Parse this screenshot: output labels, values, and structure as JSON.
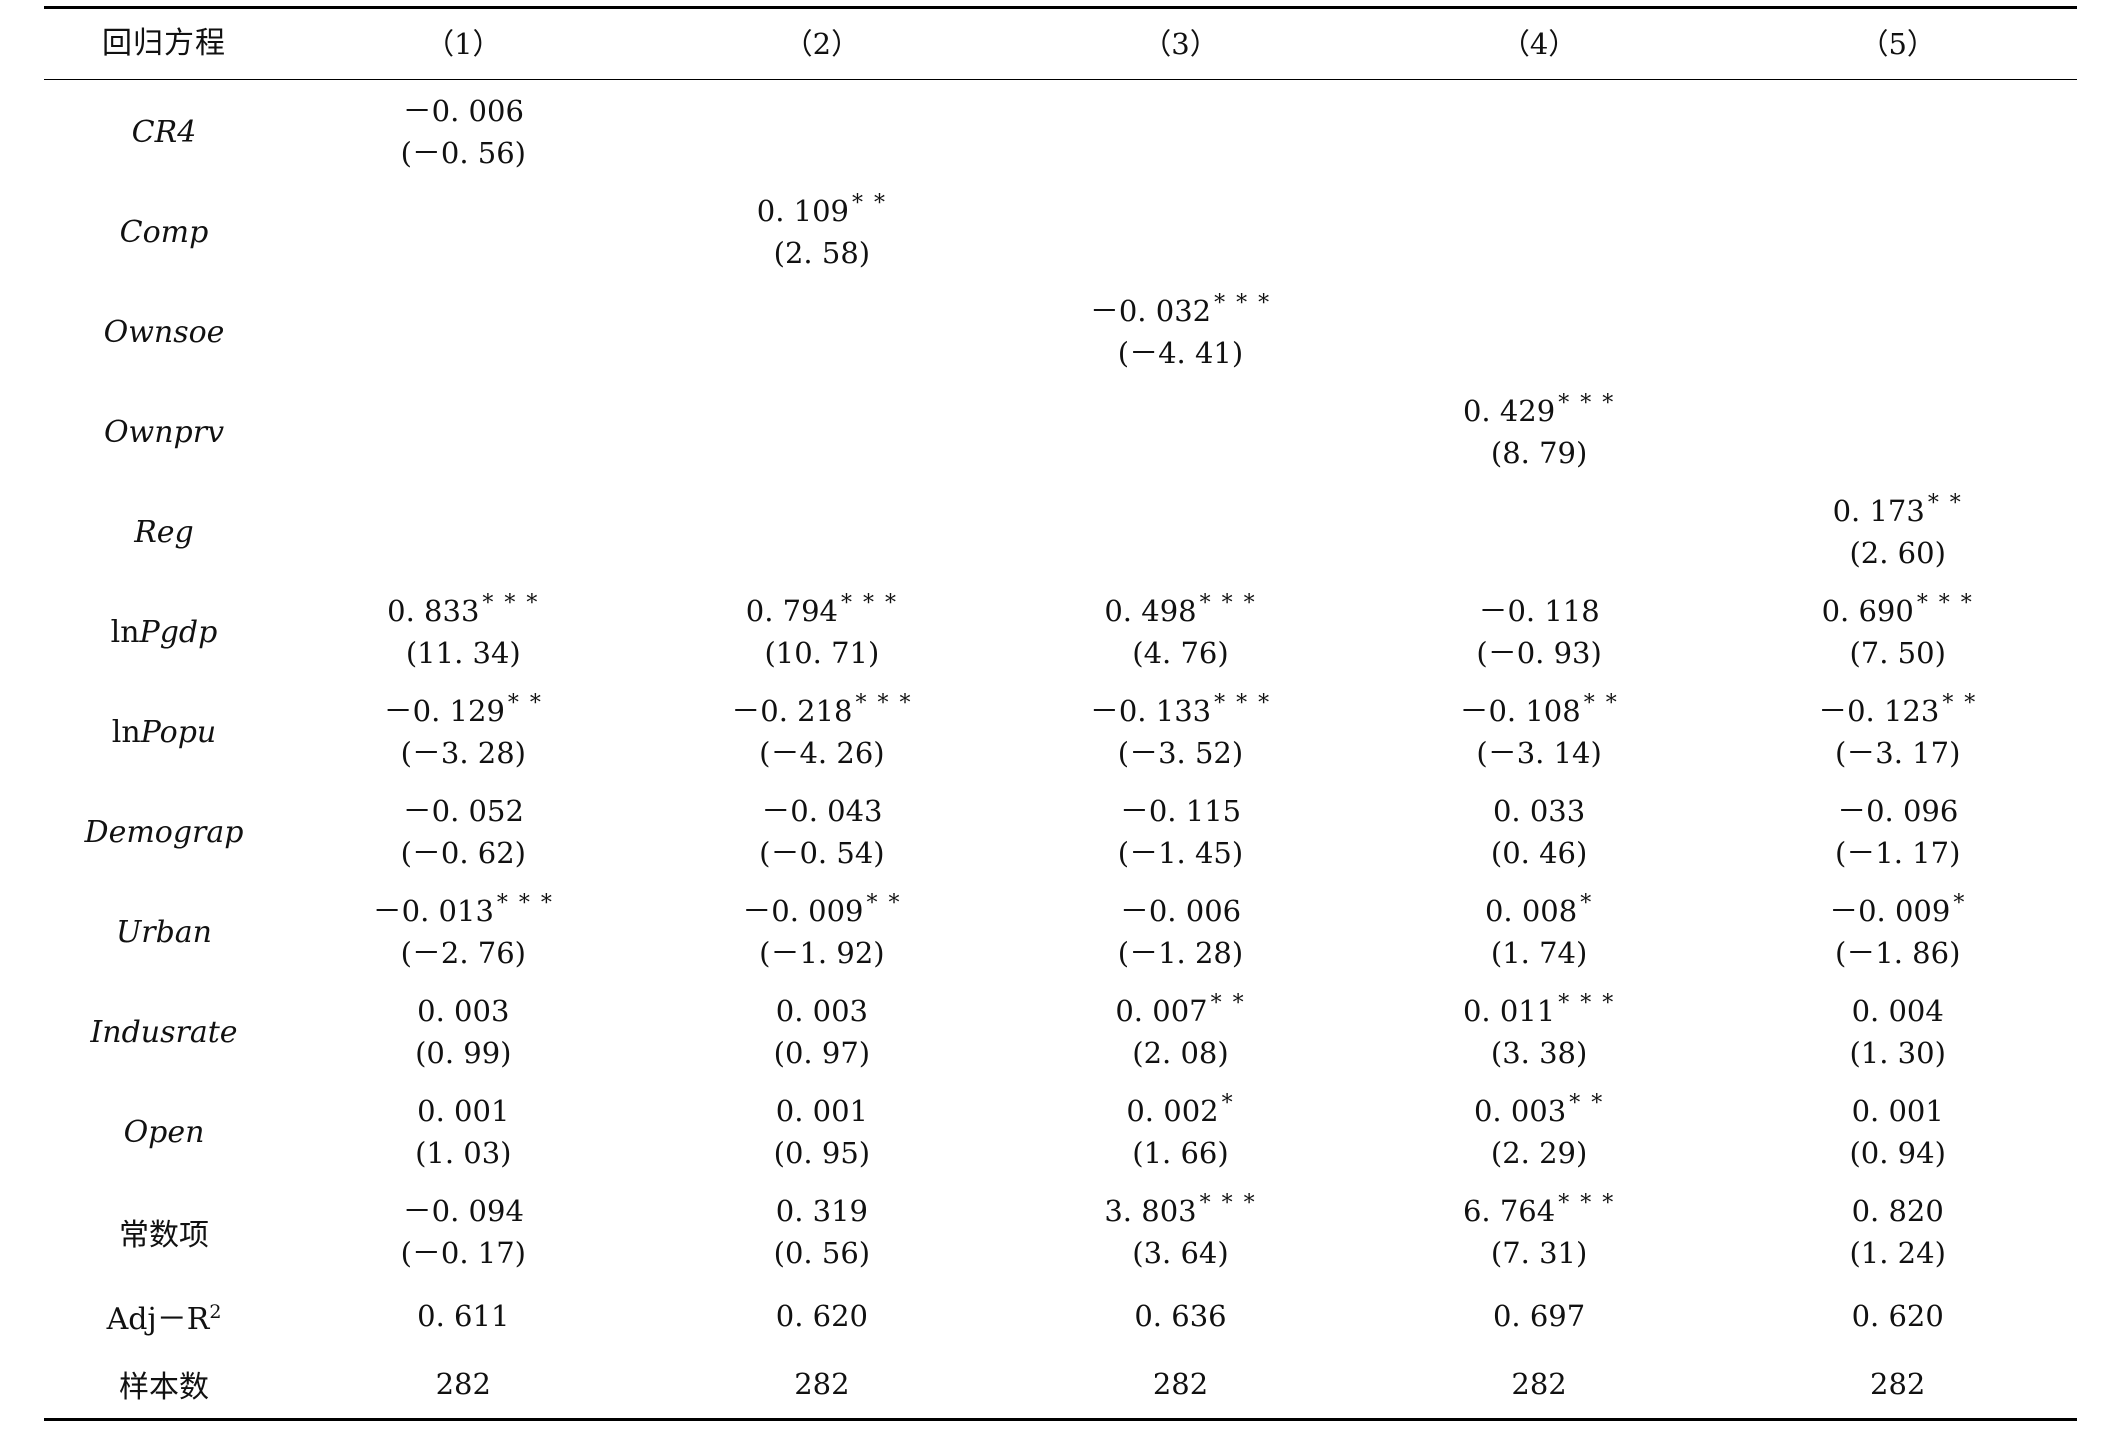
{
  "header": {
    "label": "回归方程",
    "columns": [
      "（1）",
      "（2）",
      "（3）",
      "（4）",
      "（5）"
    ]
  },
  "rows": [
    {
      "var": "CR4",
      "cells": [
        {
          "coef": "－0. 006",
          "stars": "",
          "t": "(－0. 56)"
        },
        {
          "coef": "",
          "stars": "",
          "t": ""
        },
        {
          "coef": "",
          "stars": "",
          "t": ""
        },
        {
          "coef": "",
          "stars": "",
          "t": ""
        },
        {
          "coef": "",
          "stars": "",
          "t": ""
        }
      ]
    },
    {
      "var": "Comp",
      "cells": [
        {
          "coef": "",
          "stars": "",
          "t": ""
        },
        {
          "coef": "0. 109",
          "stars": "* *",
          "t": "(2. 58)"
        },
        {
          "coef": "",
          "stars": "",
          "t": ""
        },
        {
          "coef": "",
          "stars": "",
          "t": ""
        },
        {
          "coef": "",
          "stars": "",
          "t": ""
        }
      ]
    },
    {
      "var": "Ownsoe",
      "cells": [
        {
          "coef": "",
          "stars": "",
          "t": ""
        },
        {
          "coef": "",
          "stars": "",
          "t": ""
        },
        {
          "coef": "－0. 032",
          "stars": "* * *",
          "t": "(－4. 41)"
        },
        {
          "coef": "",
          "stars": "",
          "t": ""
        },
        {
          "coef": "",
          "stars": "",
          "t": ""
        }
      ]
    },
    {
      "var": "Ownprv",
      "cells": [
        {
          "coef": "",
          "stars": "",
          "t": ""
        },
        {
          "coef": "",
          "stars": "",
          "t": ""
        },
        {
          "coef": "",
          "stars": "",
          "t": ""
        },
        {
          "coef": "0. 429",
          "stars": "* * *",
          "t": "(8. 79)"
        },
        {
          "coef": "",
          "stars": "",
          "t": ""
        }
      ]
    },
    {
      "var": "Reg",
      "cells": [
        {
          "coef": "",
          "stars": "",
          "t": ""
        },
        {
          "coef": "",
          "stars": "",
          "t": ""
        },
        {
          "coef": "",
          "stars": "",
          "t": ""
        },
        {
          "coef": "",
          "stars": "",
          "t": ""
        },
        {
          "coef": "0. 173",
          "stars": "* *",
          "t": "(2. 60)"
        }
      ]
    },
    {
      "var_prefix": "ln",
      "var": "Pgdp",
      "cells": [
        {
          "coef": "0. 833",
          "stars": "* * *",
          "t": "(11. 34)"
        },
        {
          "coef": "0. 794",
          "stars": "* * *",
          "t": "(10. 71)"
        },
        {
          "coef": "0. 498",
          "stars": "* * *",
          "t": "(4. 76)"
        },
        {
          "coef": "－0. 118",
          "stars": "",
          "t": "(－0. 93)"
        },
        {
          "coef": "0. 690",
          "stars": "* * *",
          "t": "(7. 50)"
        }
      ]
    },
    {
      "var_prefix": "ln",
      "var": "Popu",
      "cells": [
        {
          "coef": "－0. 129",
          "stars": "* *",
          "t": "(－3. 28)"
        },
        {
          "coef": "－0. 218",
          "stars": "* * *",
          "t": "(－4. 26)"
        },
        {
          "coef": "－0. 133",
          "stars": "* * *",
          "t": "(－3. 52)"
        },
        {
          "coef": "－0. 108",
          "stars": "* *",
          "t": "(－3. 14)"
        },
        {
          "coef": "－0. 123",
          "stars": "* *",
          "t": "(－3. 17)"
        }
      ]
    },
    {
      "var": "Demograp",
      "cells": [
        {
          "coef": "－0. 052",
          "stars": "",
          "t": "(－0. 62)"
        },
        {
          "coef": "－0. 043",
          "stars": "",
          "t": "(－0. 54)"
        },
        {
          "coef": "－0. 115",
          "stars": "",
          "t": "(－1. 45)"
        },
        {
          "coef": "0. 033",
          "stars": "",
          "t": "(0. 46)"
        },
        {
          "coef": "－0. 096",
          "stars": "",
          "t": "(－1. 17)"
        }
      ]
    },
    {
      "var": "Urban",
      "cells": [
        {
          "coef": "－0. 013",
          "stars": "* * *",
          "t": "(－2. 76)"
        },
        {
          "coef": "－0. 009",
          "stars": "* *",
          "t": "(－1. 92)"
        },
        {
          "coef": "－0. 006",
          "stars": "",
          "t": "(－1. 28)"
        },
        {
          "coef": "0. 008",
          "stars": "*",
          "t": "(1. 74)"
        },
        {
          "coef": "－0. 009",
          "stars": "*",
          "t": "(－1. 86)"
        }
      ]
    },
    {
      "var": "Indusrate",
      "cells": [
        {
          "coef": "0. 003",
          "stars": "",
          "t": "(0. 99)"
        },
        {
          "coef": "0. 003",
          "stars": "",
          "t": "(0. 97)"
        },
        {
          "coef": "0. 007",
          "stars": "* *",
          "t": "(2. 08)"
        },
        {
          "coef": "0. 011",
          "stars": "* * *",
          "t": "(3. 38)"
        },
        {
          "coef": "0. 004",
          "stars": "",
          "t": "(1. 30)"
        }
      ]
    },
    {
      "var": "Open",
      "cells": [
        {
          "coef": "0. 001",
          "stars": "",
          "t": "(1. 03)"
        },
        {
          "coef": "0. 001",
          "stars": "",
          "t": "(0. 95)"
        },
        {
          "coef": "0. 002",
          "stars": "*",
          "t": "(1. 66)"
        },
        {
          "coef": "0. 003",
          "stars": "* *",
          "t": "(2. 29)"
        },
        {
          "coef": "0. 001",
          "stars": "",
          "t": "(0. 94)"
        }
      ]
    },
    {
      "var": "常数项",
      "cn": true,
      "cells": [
        {
          "coef": "－0. 094",
          "stars": "",
          "t": "(－0. 17)"
        },
        {
          "coef": "0. 319",
          "stars": "",
          "t": "(0. 56)"
        },
        {
          "coef": "3. 803",
          "stars": "* * *",
          "t": "(3. 64)"
        },
        {
          "coef": "6. 764",
          "stars": "* * *",
          "t": "(7. 31)"
        },
        {
          "coef": "0. 820",
          "stars": "",
          "t": "(1. 24)"
        }
      ]
    }
  ],
  "adj_r2": {
    "label": "Adj－R",
    "label_sup": "2",
    "values": [
      "0. 611",
      "0. 620",
      "0. 636",
      "0. 697",
      "0. 620"
    ]
  },
  "sample": {
    "label": "样本数",
    "values": [
      "282",
      "282",
      "282",
      "282",
      "282"
    ]
  }
}
